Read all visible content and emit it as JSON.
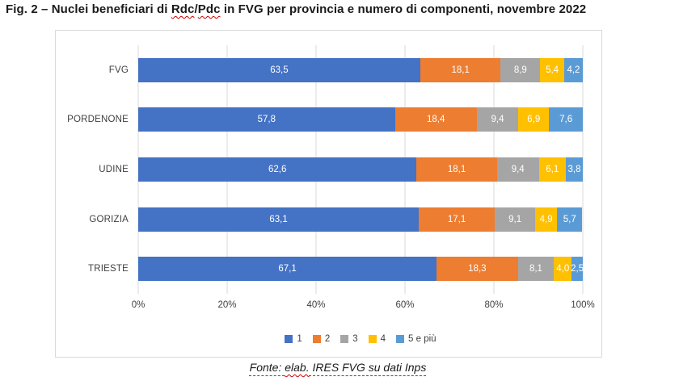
{
  "title": {
    "parts": [
      {
        "text": "Fig. 2 – Nuclei beneficiari di ",
        "style": "plain"
      },
      {
        "text": "Rdc",
        "style": "spellcheck"
      },
      {
        "text": "/",
        "style": "plain"
      },
      {
        "text": "Pdc",
        "style": "spellcheck"
      },
      {
        "text": " in FVG per provincia e numero di componenti, novembre 2022",
        "style": "plain"
      }
    ]
  },
  "chart_data": {
    "type": "bar",
    "orientation": "horizontal",
    "stacked": true,
    "unit": "%",
    "categories": [
      "FVG",
      "PORDENONE",
      "UDINE",
      "GORIZIA",
      "TRIESTE"
    ],
    "series": [
      {
        "name": "1",
        "color": "#4472C4",
        "values": [
          63.5,
          57.8,
          62.6,
          63.1,
          67.1
        ],
        "labels": [
          "63,5",
          "57,8",
          "62,6",
          "63,1",
          "67,1"
        ]
      },
      {
        "name": "2",
        "color": "#ED7D31",
        "values": [
          18.1,
          18.4,
          18.1,
          17.1,
          18.3
        ],
        "labels": [
          "18,1",
          "18,4",
          "18,1",
          "17,1",
          "18,3"
        ]
      },
      {
        "name": "3",
        "color": "#A5A5A5",
        "values": [
          8.9,
          9.4,
          9.4,
          9.1,
          8.1
        ],
        "labels": [
          "8,9",
          "9,4",
          "9,4",
          "9,1",
          "8,1"
        ]
      },
      {
        "name": "4",
        "color": "#FFC000",
        "values": [
          5.4,
          6.9,
          6.1,
          4.9,
          4.0
        ],
        "labels": [
          "5,4",
          "6,9",
          "6,1",
          "4,9",
          "4,0"
        ]
      },
      {
        "name": "5 e più",
        "color": "#5B9BD5",
        "values": [
          4.2,
          7.6,
          3.8,
          5.7,
          2.5
        ],
        "labels": [
          "4,2",
          "7,6",
          "3,8",
          "5,7",
          "2,5"
        ]
      }
    ],
    "x_ticks": [
      "0%",
      "20%",
      "40%",
      "60%",
      "80%",
      "100%"
    ],
    "xlim": [
      0,
      100
    ],
    "grid": "vertical",
    "legend_position": "bottom",
    "data_label_color": "#ffffff",
    "gridline_color": "#d9d9d9",
    "frame_color": "#d9d9d9"
  },
  "footer": {
    "parts": [
      {
        "text": "Fonte: ",
        "style": "dashed"
      },
      {
        "text": "elab.",
        "style": "spellcheck"
      },
      {
        "text": " IRES FVG su dati Inps",
        "style": "dashed"
      }
    ]
  }
}
